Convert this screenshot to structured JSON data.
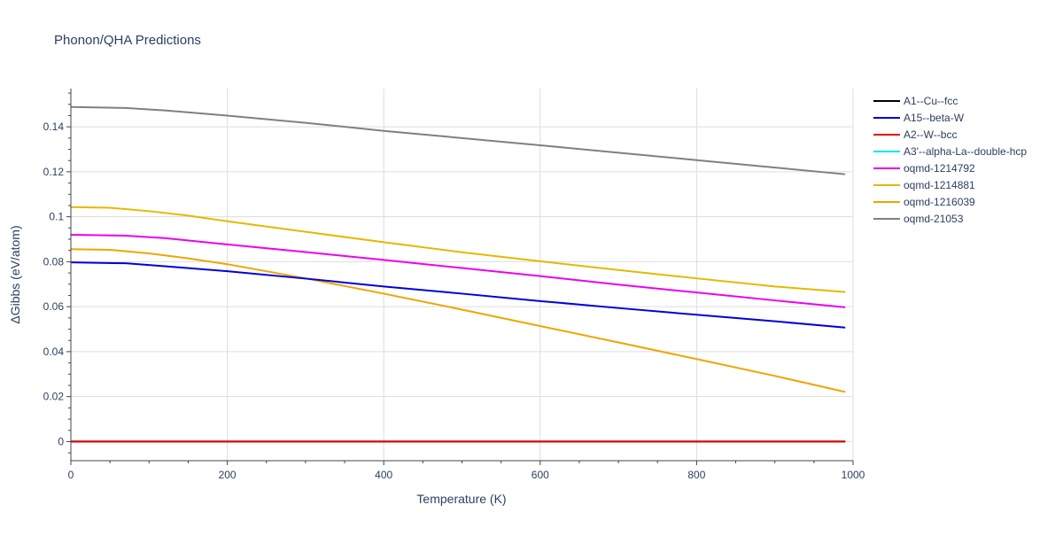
{
  "chart_data": {
    "type": "line",
    "title": "Phonon/QHA Predictions",
    "xlabel": "Temperature (K)",
    "ylabel": "ΔGibbs (eV/atom)",
    "xlim": [
      0,
      1000
    ],
    "ylim": [
      -0.0085,
      0.157
    ],
    "x_ticks": [
      0,
      200,
      400,
      600,
      800,
      1000
    ],
    "x_tick_labels": [
      "0",
      "200",
      "400",
      "600",
      "800",
      "1000"
    ],
    "y_ticks": [
      0,
      0.02,
      0.04,
      0.06,
      0.08,
      0.1,
      0.12,
      0.14
    ],
    "y_tick_labels": [
      "0",
      "0.02",
      "0.04",
      "0.06",
      "0.08",
      "0.1",
      "0.12",
      "0.14"
    ],
    "grid": true,
    "legend_position": "right",
    "series": [
      {
        "name": "A1--Cu--fcc",
        "color": "#000000",
        "x": [
          0,
          50,
          100,
          150,
          200,
          300,
          400,
          500,
          600,
          700,
          800,
          900,
          990
        ],
        "y": [
          0,
          0,
          0,
          0,
          0,
          0,
          0,
          0,
          0,
          0,
          0,
          0,
          0
        ]
      },
      {
        "name": "A15--beta-W",
        "color": "#0000dd",
        "x": [
          0,
          70,
          120,
          200,
          300,
          400,
          500,
          600,
          700,
          800,
          900,
          990
        ],
        "y": [
          0.0797,
          0.0793,
          0.078,
          0.0758,
          0.0725,
          0.069,
          0.0658,
          0.0625,
          0.0594,
          0.0564,
          0.0535,
          0.0507
        ]
      },
      {
        "name": "A2--W--bcc",
        "color": "#ee0000",
        "x": [
          0,
          200,
          400,
          600,
          800,
          990
        ],
        "y": [
          0,
          0,
          0,
          0,
          0,
          0
        ]
      },
      {
        "name": "A3'--alpha-La--double-hcp",
        "color": "#00e5ee",
        "x": [
          0,
          50,
          100,
          150,
          200,
          300,
          400,
          500,
          600,
          700,
          800,
          900,
          990
        ],
        "y": [
          0,
          0,
          0,
          0,
          0,
          0,
          0,
          0,
          0,
          0,
          0,
          0,
          0
        ]
      },
      {
        "name": "oqmd-1214792",
        "color": "#ee00ee",
        "x": [
          0,
          70,
          120,
          200,
          300,
          400,
          500,
          600,
          700,
          800,
          900,
          990
        ],
        "y": [
          0.092,
          0.0916,
          0.0905,
          0.0877,
          0.0843,
          0.0808,
          0.0772,
          0.0736,
          0.0698,
          0.0663,
          0.0628,
          0.0597
        ]
      },
      {
        "name": "oqmd-1214881",
        "color": "#e6b800",
        "x": [
          0,
          50,
          100,
          150,
          200,
          300,
          400,
          500,
          600,
          700,
          800,
          900,
          990
        ],
        "y": [
          0.1043,
          0.104,
          0.1025,
          0.1005,
          0.098,
          0.0933,
          0.0887,
          0.0842,
          0.0802,
          0.0763,
          0.0726,
          0.069,
          0.0665
        ]
      },
      {
        "name": "oqmd-1216039",
        "color": "#f0a500",
        "x": [
          0,
          50,
          100,
          150,
          200,
          300,
          400,
          500,
          600,
          700,
          800,
          900,
          990
        ],
        "y": [
          0.0856,
          0.0853,
          0.0837,
          0.0815,
          0.0789,
          0.0726,
          0.0658,
          0.0587,
          0.0514,
          0.0441,
          0.0367,
          0.0292,
          0.0221
        ]
      },
      {
        "name": "oqmd-21053",
        "color": "#808080",
        "x": [
          0,
          70,
          120,
          200,
          300,
          400,
          500,
          600,
          700,
          800,
          900,
          990
        ],
        "y": [
          0.1488,
          0.1484,
          0.1473,
          0.145,
          0.1418,
          0.1382,
          0.135,
          0.1318,
          0.1285,
          0.1252,
          0.1219,
          0.1189
        ]
      }
    ]
  }
}
